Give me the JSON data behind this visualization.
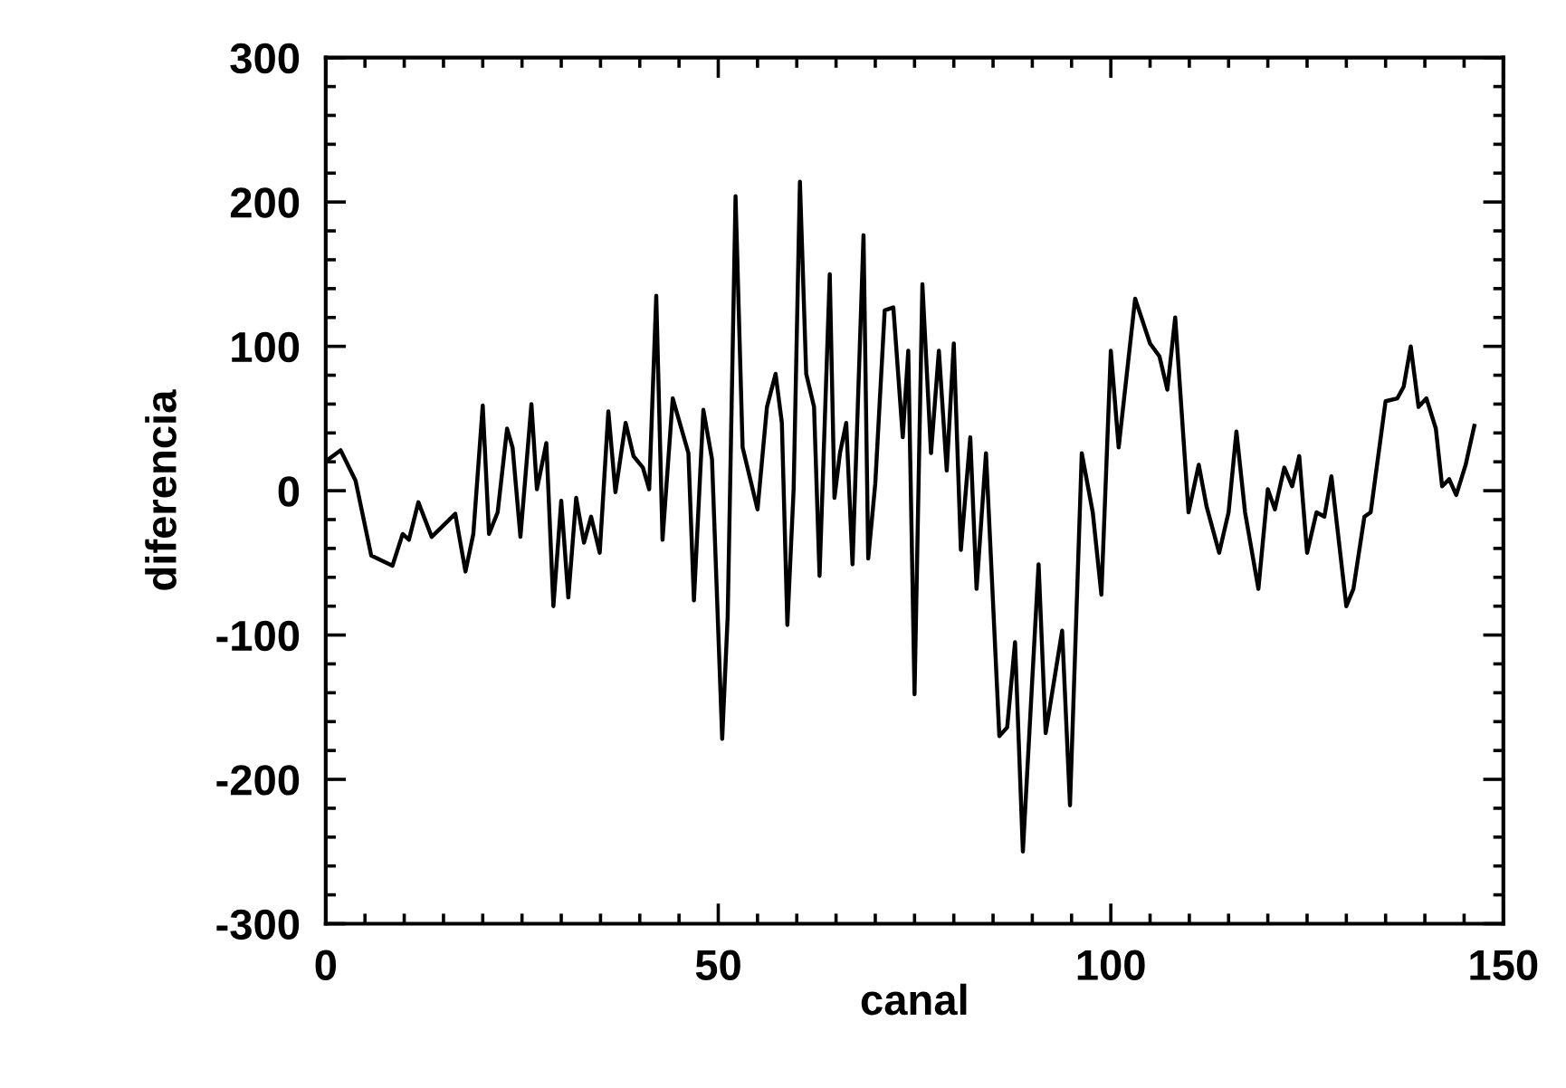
{
  "chart_data": {
    "type": "line",
    "xlabel": "canal",
    "ylabel": "diferencia",
    "xlim": [
      0,
      150
    ],
    "xticks": [
      0,
      50,
      100,
      150
    ],
    "ylim": [
      -300,
      300
    ],
    "yticks": [
      -300,
      -200,
      -100,
      0,
      100,
      200,
      300
    ],
    "grid": false,
    "marker": "none",
    "line_style": "solid",
    "series": [
      {
        "color": "#000000",
        "x": [
          0.4,
          1.9,
          3.8,
          5.8,
          8.5,
          9.8,
          10.6,
          11.8,
          13.5,
          16.5,
          17.8,
          18.8,
          20,
          20.8,
          21.9,
          23.1,
          23.8,
          24.8,
          26.2,
          26.9,
          28.1,
          29,
          30,
          30.9,
          31.9,
          32.9,
          33.8,
          34.9,
          36,
          36.9,
          38.2,
          39.2,
          40.4,
          41.2,
          42.1,
          42.9,
          44.2,
          46.2,
          46.9,
          48.1,
          49.2,
          50.5,
          51.2,
          52.2,
          53.1,
          55,
          56.2,
          57.3,
          58.1,
          58.8,
          59.6,
          60.4,
          61.2,
          62.2,
          62.9,
          64.2,
          64.8,
          65.5,
          66.3,
          67.1,
          68.5,
          69.1,
          70,
          71.2,
          72.3,
          73.5,
          74.2,
          75,
          76,
          77.1,
          78.1,
          79.1,
          80,
          80.9,
          82.1,
          82.9,
          84.1,
          85.8,
          86.8,
          87.8,
          88.8,
          90.8,
          91.7,
          93.8,
          94.8,
          96.3,
          97.7,
          98.8,
          100,
          101,
          103.1,
          105,
          106.2,
          107.2,
          108.2,
          109.9,
          111.2,
          112.2,
          113.8,
          115,
          116,
          117.1,
          118.8,
          120,
          120.9,
          122.1,
          123.1,
          124,
          125,
          126.2,
          127.2,
          128.1,
          130,
          130.9,
          132.3,
          133.1,
          135,
          136.5,
          137.3,
          138.2,
          139.2,
          140.2,
          141.4,
          142.2,
          143.1,
          144,
          145.2,
          146.3
        ],
        "values": [
          22,
          28,
          7,
          -45,
          -52,
          -30,
          -34,
          -8,
          -32,
          -16,
          -56,
          -30,
          59,
          -30,
          -15,
          43,
          30,
          -32,
          60,
          1,
          33,
          -80,
          -7,
          -74,
          -5,
          -36,
          -18,
          -43,
          55,
          -1,
          47,
          24,
          16,
          1,
          135,
          -34,
          64,
          26,
          -76,
          56,
          22,
          -172,
          -87,
          204,
          30,
          -13,
          58,
          81,
          47,
          -93,
          1,
          214,
          81,
          58,
          -59,
          150,
          -5,
          26,
          47,
          -51,
          177,
          -47,
          5,
          125,
          127,
          37,
          97,
          -141,
          143,
          26,
          97,
          14,
          102,
          -41,
          37,
          -68,
          26,
          -170,
          -164,
          -105,
          -250,
          -51,
          -168,
          -97,
          -218,
          26,
          -15,
          -72,
          97,
          30,
          133,
          102,
          93,
          70,
          120,
          -15,
          18,
          -11,
          -43,
          -15,
          41,
          -15,
          -68,
          1,
          -13,
          16,
          3,
          24,
          -43,
          -15,
          -18,
          10,
          -80,
          -68,
          -18,
          -15,
          62,
          64,
          72,
          100,
          58,
          64,
          43,
          3,
          8,
          -3,
          18,
          45
        ]
      }
    ]
  }
}
